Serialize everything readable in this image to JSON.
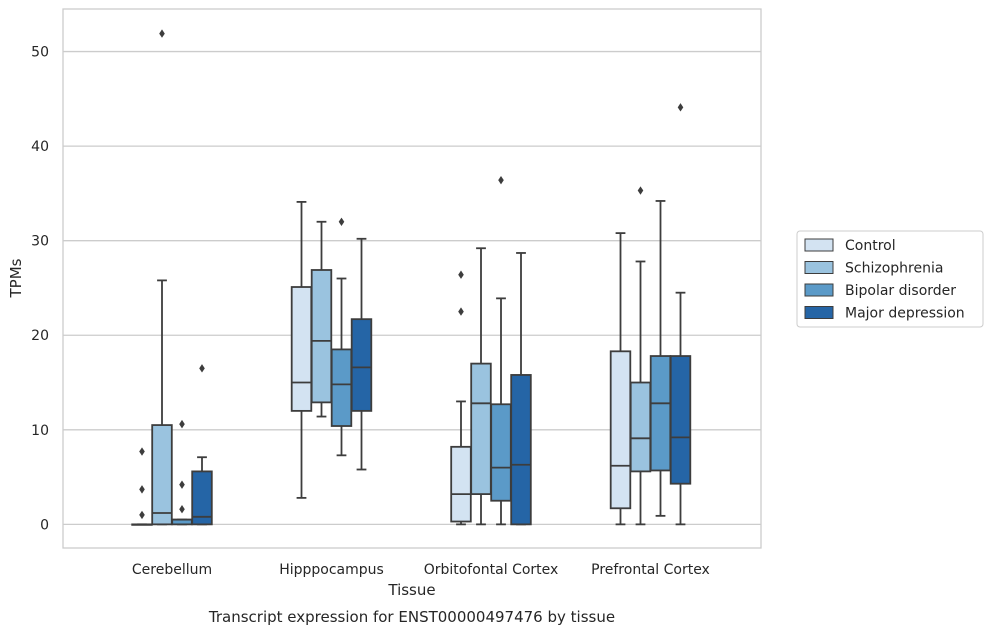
{
  "chart_data": {
    "type": "box",
    "xlabel": "Tissue",
    "ylabel": "TPMs",
    "caption": "Transcript expression for ENST00000497476 by tissue",
    "ylim": [
      -2.5,
      54.5
    ],
    "yticks": [
      0,
      10,
      20,
      30,
      40,
      50
    ],
    "grid": "horizontal",
    "legend_position": "right",
    "categories": [
      "Cerebellum",
      "Hipppocampus",
      "Orbitofontal Cortex",
      "Prefrontal Cortex"
    ],
    "series": [
      {
        "name": "Control",
        "color": "#d3e3f2",
        "boxes": [
          {
            "whislo": 0,
            "q1": 0,
            "med": 0,
            "q3": 0,
            "whishi": 0,
            "fliers": [
              1.0,
              3.7,
              7.7
            ]
          },
          {
            "whislo": 2.8,
            "q1": 12.0,
            "med": 15.0,
            "q3": 25.1,
            "whishi": 34.1,
            "fliers": []
          },
          {
            "whislo": 0,
            "q1": 0.3,
            "med": 3.2,
            "q3": 8.2,
            "whishi": 13.0,
            "fliers": [
              22.5,
              26.4
            ]
          },
          {
            "whislo": 0,
            "q1": 1.7,
            "med": 6.2,
            "q3": 18.3,
            "whishi": 30.8,
            "fliers": []
          }
        ]
      },
      {
        "name": "Schizophrenia",
        "color": "#9ac3df",
        "boxes": [
          {
            "whislo": 0,
            "q1": 0,
            "med": 1.2,
            "q3": 10.5,
            "whishi": 25.8,
            "fliers": [
              51.9
            ]
          },
          {
            "whislo": 11.4,
            "q1": 12.9,
            "med": 19.4,
            "q3": 26.9,
            "whishi": 32.0,
            "fliers": []
          },
          {
            "whislo": 0,
            "q1": 3.2,
            "med": 12.8,
            "q3": 17.0,
            "whishi": 29.2,
            "fliers": []
          },
          {
            "whislo": 0,
            "q1": 5.6,
            "med": 9.1,
            "q3": 15.0,
            "whishi": 27.8,
            "fliers": [
              35.3
            ]
          }
        ]
      },
      {
        "name": "Bipolar disorder",
        "color": "#5b9ac8",
        "boxes": [
          {
            "whislo": 0,
            "q1": 0,
            "med": 0.5,
            "q3": 0.5,
            "whishi": 0.5,
            "fliers": [
              1.6,
              4.2,
              10.6
            ]
          },
          {
            "whislo": 7.3,
            "q1": 10.4,
            "med": 14.8,
            "q3": 18.5,
            "whishi": 26.0,
            "fliers": [
              32.0
            ]
          },
          {
            "whislo": 0,
            "q1": 2.5,
            "med": 6.0,
            "q3": 12.7,
            "whishi": 23.9,
            "fliers": [
              36.4
            ]
          },
          {
            "whislo": 0.9,
            "q1": 5.7,
            "med": 12.8,
            "q3": 17.8,
            "whishi": 34.2,
            "fliers": []
          }
        ]
      },
      {
        "name": "Major depression",
        "color": "#2565a6",
        "boxes": [
          {
            "whislo": 0,
            "q1": 0,
            "med": 0.8,
            "q3": 5.6,
            "whishi": 7.1,
            "fliers": [
              16.5
            ]
          },
          {
            "whislo": 5.8,
            "q1": 12.0,
            "med": 16.6,
            "q3": 21.7,
            "whishi": 30.2,
            "fliers": []
          },
          {
            "whislo": 0,
            "q1": 0,
            "med": 6.3,
            "q3": 15.8,
            "whishi": 28.7,
            "fliers": []
          },
          {
            "whislo": 0,
            "q1": 4.3,
            "med": 9.2,
            "q3": 17.8,
            "whishi": 24.5,
            "fliers": [
              44.1
            ]
          }
        ]
      }
    ]
  }
}
